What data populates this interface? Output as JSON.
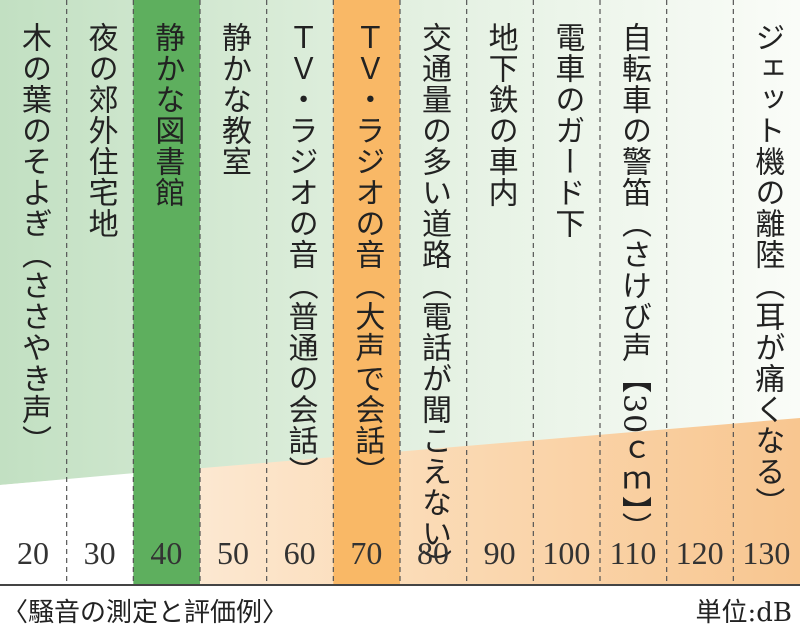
{
  "chart_data": {
    "type": "table",
    "caption": "〈騒音の測定と評価例〉",
    "unit": "単位:dB",
    "highlight_colors": {
      "40": "#5eaf5e",
      "70": "#f9b866"
    },
    "items": [
      {
        "db": "20",
        "example": "木の葉のそよぎ（ささやき声）"
      },
      {
        "db": "30",
        "example": "夜の郊外住宅地"
      },
      {
        "db": "40",
        "example": "静かな図書館"
      },
      {
        "db": "50",
        "example": "静かな教室"
      },
      {
        "db": "60",
        "example": "ＴＶ・ラジオの音（普通の会話）"
      },
      {
        "db": "70",
        "example": "ＴＶ・ラジオの音（大声で会話）"
      },
      {
        "db": "80",
        "example": "交通量の多い道路（電話が聞こえない）"
      },
      {
        "db": "90",
        "example": "地下鉄の車内"
      },
      {
        "db": "100",
        "example": "電車のガード下"
      },
      {
        "db": "110",
        "example": "自転車の警笛（さけび声【30ｃｍ】）"
      },
      {
        "db": "120",
        "example": ""
      },
      {
        "db": "130",
        "example": "ジェット機の離陸（耳が痛くなる）"
      }
    ]
  }
}
